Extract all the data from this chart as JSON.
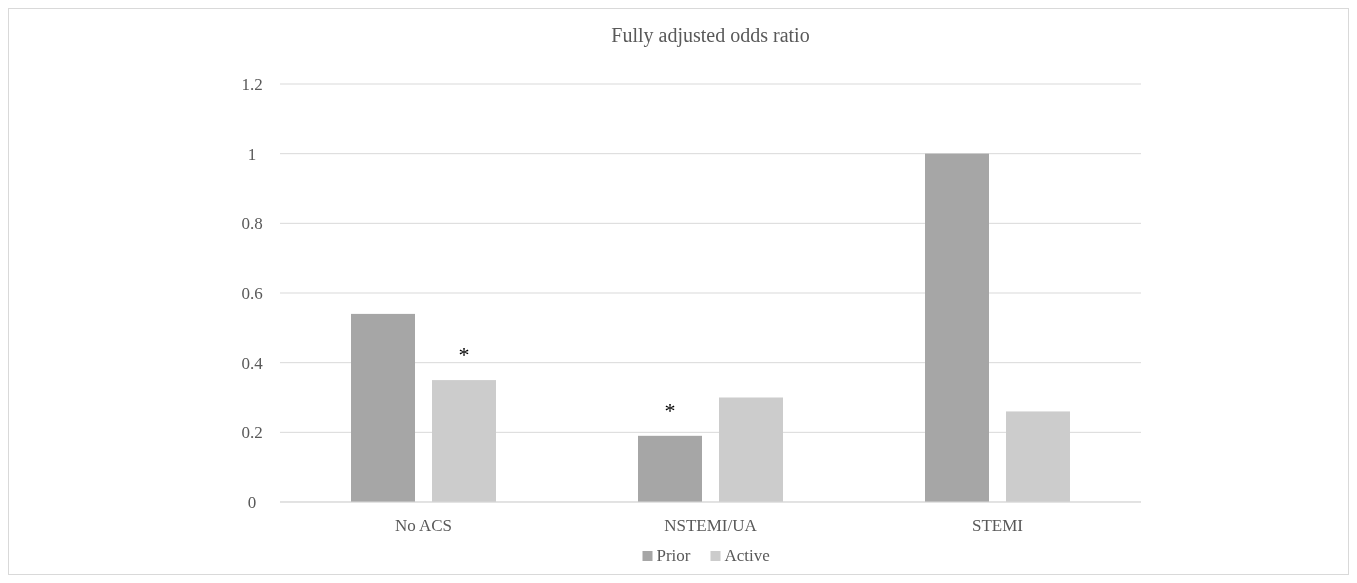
{
  "chart_data": {
    "type": "bar",
    "title": "Fully adjusted odds ratio",
    "categories": [
      "No ACS",
      "NSTEMI/UA",
      "STEMI"
    ],
    "series": [
      {
        "name": "Prior",
        "color": "#a6a6a6",
        "values": [
          0.54,
          0.19,
          1.0
        ]
      },
      {
        "name": "Active",
        "color": "#cccccc",
        "values": [
          0.35,
          0.3,
          0.26
        ]
      }
    ],
    "ylim": [
      0,
      1.2
    ],
    "yticks": [
      0,
      0.2,
      0.4,
      0.6,
      0.8,
      1,
      1.2
    ],
    "grid": "y",
    "legend": "bottom",
    "annotations": [
      "*",
      "*"
    ]
  }
}
